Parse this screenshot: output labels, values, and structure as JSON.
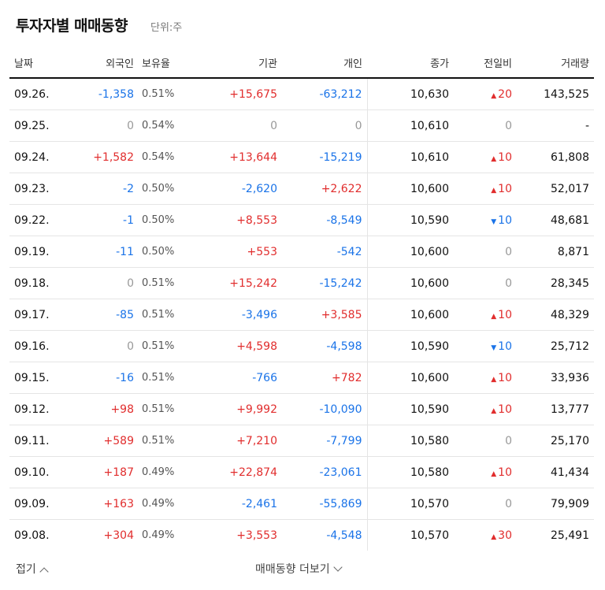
{
  "header": {
    "title": "투자자별 매매동향",
    "unit": "단위:주"
  },
  "columns": [
    "날짜",
    "외국인",
    "보유율",
    "기관",
    "개인",
    "종가",
    "전일비",
    "거래량"
  ],
  "rows": [
    {
      "date": "09.26.",
      "foreign": "-1,358",
      "foreign_dir": "down",
      "hold": "0.51%",
      "inst": "+15,675",
      "inst_dir": "up",
      "indiv": "-63,212",
      "indiv_dir": "down",
      "close": "10,630",
      "chg": "20",
      "chg_dir": "up",
      "vol": "143,525"
    },
    {
      "date": "09.25.",
      "foreign": "0",
      "foreign_dir": "neutral",
      "hold": "0.54%",
      "inst": "0",
      "inst_dir": "neutral",
      "indiv": "0",
      "indiv_dir": "neutral",
      "close": "10,610",
      "chg": "0",
      "chg_dir": "neutral",
      "vol": "-"
    },
    {
      "date": "09.24.",
      "foreign": "+1,582",
      "foreign_dir": "up",
      "hold": "0.54%",
      "inst": "+13,644",
      "inst_dir": "up",
      "indiv": "-15,219",
      "indiv_dir": "down",
      "close": "10,610",
      "chg": "10",
      "chg_dir": "up",
      "vol": "61,808"
    },
    {
      "date": "09.23.",
      "foreign": "-2",
      "foreign_dir": "down",
      "hold": "0.50%",
      "inst": "-2,620",
      "inst_dir": "down",
      "indiv": "+2,622",
      "indiv_dir": "up",
      "close": "10,600",
      "chg": "10",
      "chg_dir": "up",
      "vol": "52,017"
    },
    {
      "date": "09.22.",
      "foreign": "-1",
      "foreign_dir": "down",
      "hold": "0.50%",
      "inst": "+8,553",
      "inst_dir": "up",
      "indiv": "-8,549",
      "indiv_dir": "down",
      "close": "10,590",
      "chg": "10",
      "chg_dir": "down",
      "vol": "48,681"
    },
    {
      "date": "09.19.",
      "foreign": "-11",
      "foreign_dir": "down",
      "hold": "0.50%",
      "inst": "+553",
      "inst_dir": "up",
      "indiv": "-542",
      "indiv_dir": "down",
      "close": "10,600",
      "chg": "0",
      "chg_dir": "neutral",
      "vol": "8,871"
    },
    {
      "date": "09.18.",
      "foreign": "0",
      "foreign_dir": "neutral",
      "hold": "0.51%",
      "inst": "+15,242",
      "inst_dir": "up",
      "indiv": "-15,242",
      "indiv_dir": "down",
      "close": "10,600",
      "chg": "0",
      "chg_dir": "neutral",
      "vol": "28,345"
    },
    {
      "date": "09.17.",
      "foreign": "-85",
      "foreign_dir": "down",
      "hold": "0.51%",
      "inst": "-3,496",
      "inst_dir": "down",
      "indiv": "+3,585",
      "indiv_dir": "up",
      "close": "10,600",
      "chg": "10",
      "chg_dir": "up",
      "vol": "48,329"
    },
    {
      "date": "09.16.",
      "foreign": "0",
      "foreign_dir": "neutral",
      "hold": "0.51%",
      "inst": "+4,598",
      "inst_dir": "up",
      "indiv": "-4,598",
      "indiv_dir": "down",
      "close": "10,590",
      "chg": "10",
      "chg_dir": "down",
      "vol": "25,712"
    },
    {
      "date": "09.15.",
      "foreign": "-16",
      "foreign_dir": "down",
      "hold": "0.51%",
      "inst": "-766",
      "inst_dir": "down",
      "indiv": "+782",
      "indiv_dir": "up",
      "close": "10,600",
      "chg": "10",
      "chg_dir": "up",
      "vol": "33,936"
    },
    {
      "date": "09.12.",
      "foreign": "+98",
      "foreign_dir": "up",
      "hold": "0.51%",
      "inst": "+9,992",
      "inst_dir": "up",
      "indiv": "-10,090",
      "indiv_dir": "down",
      "close": "10,590",
      "chg": "10",
      "chg_dir": "up",
      "vol": "13,777"
    },
    {
      "date": "09.11.",
      "foreign": "+589",
      "foreign_dir": "up",
      "hold": "0.51%",
      "inst": "+7,210",
      "inst_dir": "up",
      "indiv": "-7,799",
      "indiv_dir": "down",
      "close": "10,580",
      "chg": "0",
      "chg_dir": "neutral",
      "vol": "25,170"
    },
    {
      "date": "09.10.",
      "foreign": "+187",
      "foreign_dir": "up",
      "hold": "0.49%",
      "inst": "+22,874",
      "inst_dir": "up",
      "indiv": "-23,061",
      "indiv_dir": "down",
      "close": "10,580",
      "chg": "10",
      "chg_dir": "up",
      "vol": "41,434"
    },
    {
      "date": "09.09.",
      "foreign": "+163",
      "foreign_dir": "up",
      "hold": "0.49%",
      "inst": "-2,461",
      "inst_dir": "down",
      "indiv": "-55,869",
      "indiv_dir": "down",
      "close": "10,570",
      "chg": "0",
      "chg_dir": "neutral",
      "vol": "79,909"
    },
    {
      "date": "09.08.",
      "foreign": "+304",
      "foreign_dir": "up",
      "hold": "0.49%",
      "inst": "+3,553",
      "inst_dir": "up",
      "indiv": "-4,548",
      "indiv_dir": "down",
      "close": "10,570",
      "chg": "30",
      "chg_dir": "up",
      "vol": "25,491"
    }
  ],
  "footer": {
    "collapse_label": "접기",
    "more_label": "매매동향 더보기"
  },
  "colors": {
    "up": "#e12d2d",
    "down": "#1a73e8",
    "neutral": "#999999"
  }
}
